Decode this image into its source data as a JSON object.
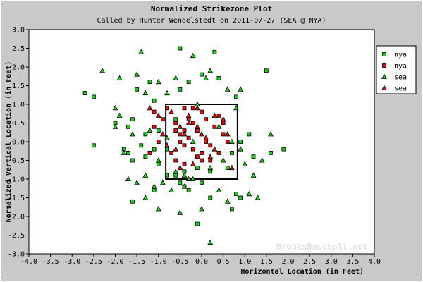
{
  "chart_data": {
    "type": "scatter",
    "title": "Normalized Strikezone Plot",
    "subtitle": "Called by Hunter Wendelstedt on 2011-07-27 (SEA @ NYA)",
    "xlabel": "Horizontal Location (in Feet)",
    "ylabel": "Normalized Vertical Location (in Feet)",
    "xlim": [
      -4.0,
      4.0
    ],
    "ylim": [
      -3.0,
      3.0
    ],
    "x_ticks": [
      "-4.0",
      "-3.5",
      "-3.0",
      "-2.5",
      "-2.0",
      "-1.5",
      "-1.0",
      "-0.5",
      "0.0",
      "0.5",
      "1.0",
      "1.5",
      "2.0",
      "2.5",
      "3.0",
      "3.5",
      "4.0"
    ],
    "y_ticks": [
      "-3.0",
      "-2.5",
      "-2.0",
      "-1.5",
      "-1.0",
      "-0.5",
      "0.0",
      "0.5",
      "1.0",
      "1.5",
      "2.0",
      "2.5",
      "3.0"
    ],
    "grid": false,
    "legend_position": "top-right",
    "watermark": "BrooksBaseball.net",
    "strike_zone": {
      "x": [
        -0.83,
        0.83
      ],
      "y": [
        -1.0,
        1.0
      ]
    },
    "series": [
      {
        "name": "nya",
        "marker": "square",
        "color": "#22cc22",
        "points": [
          [
            -2.5,
            1.2
          ],
          [
            -2.0,
            0.5
          ],
          [
            -1.7,
            0.4
          ],
          [
            -1.6,
            0.6
          ],
          [
            -1.7,
            -0.3
          ],
          [
            -1.8,
            -0.2
          ],
          [
            -1.4,
            -0.1
          ],
          [
            -1.6,
            -0.5
          ],
          [
            -1.3,
            0.2
          ],
          [
            -1.5,
            1.4
          ],
          [
            -1.1,
            1.1
          ],
          [
            -1.0,
            0.3
          ],
          [
            -1.1,
            -0.2
          ],
          [
            -1.0,
            -0.6
          ],
          [
            -0.8,
            -0.9
          ],
          [
            -0.6,
            -0.9
          ],
          [
            -0.5,
            -1.1
          ],
          [
            -0.4,
            -0.8
          ],
          [
            -0.1,
            -0.7
          ],
          [
            0.0,
            -1.1
          ],
          [
            0.2,
            -0.8
          ],
          [
            0.6,
            -0.7
          ],
          [
            0.7,
            -0.3
          ],
          [
            0.9,
            0.0
          ],
          [
            1.1,
            0.2
          ],
          [
            1.2,
            -0.4
          ],
          [
            1.6,
            -0.3
          ],
          [
            1.9,
            -0.2
          ],
          [
            0.8,
            -1.4
          ],
          [
            0.7,
            -1.8
          ],
          [
            0.9,
            -1.5
          ],
          [
            0.2,
            -1.5
          ],
          [
            -0.1,
            -2.2
          ],
          [
            -0.3,
            -1.3
          ],
          [
            -0.8,
            -0.2
          ],
          [
            -1.3,
            -0.4
          ],
          [
            -1.6,
            -1.6
          ],
          [
            -1.1,
            -1.3
          ],
          [
            -0.6,
            0.6
          ],
          [
            -0.5,
            1.4
          ],
          [
            -0.3,
            1.6
          ],
          [
            0.0,
            1.8
          ],
          [
            -0.5,
            2.5
          ],
          [
            0.3,
            2.4
          ],
          [
            -1.2,
            1.6
          ],
          [
            1.5,
            1.9
          ],
          [
            0.4,
            1.7
          ],
          [
            0.8,
            1.2
          ],
          [
            -2.7,
            1.3
          ],
          [
            -2.5,
            -0.1
          ],
          [
            -0.4,
            -1.2
          ]
        ]
      },
      {
        "name": "nya",
        "marker": "square",
        "color": "#dd1111",
        "points": [
          [
            -0.8,
            0.9
          ],
          [
            -0.6,
            0.5
          ],
          [
            -0.5,
            0.2
          ],
          [
            -0.4,
            0.9
          ],
          [
            -0.3,
            0.6
          ],
          [
            -0.2,
            0.5
          ],
          [
            -0.1,
            0.3
          ],
          [
            0.0,
            0.8
          ],
          [
            0.1,
            0.6
          ],
          [
            0.3,
            0.4
          ],
          [
            0.5,
            0.2
          ],
          [
            0.6,
            0.0
          ],
          [
            0.2,
            -0.1
          ],
          [
            0.0,
            -0.3
          ],
          [
            -0.2,
            -0.2
          ],
          [
            -0.4,
            -0.1
          ],
          [
            -0.5,
            0.0
          ],
          [
            -0.7,
            -0.3
          ],
          [
            -0.6,
            -0.5
          ],
          [
            -0.4,
            -0.6
          ],
          [
            -0.1,
            -0.4
          ],
          [
            0.2,
            -0.5
          ],
          [
            0.4,
            -0.3
          ],
          [
            0.5,
            0.5
          ],
          [
            -0.3,
            0.1
          ],
          [
            -0.6,
            0.3
          ],
          [
            -0.9,
            0.6
          ],
          [
            -1.0,
            0.0
          ],
          [
            -1.1,
            0.4
          ],
          [
            -1.2,
            -0.3
          ],
          [
            -1.1,
            0.8
          ],
          [
            0.1,
            0.0
          ],
          [
            -0.2,
            0.9
          ],
          [
            0.4,
            0.7
          ],
          [
            -0.4,
            0.3
          ],
          [
            0.0,
            -0.5
          ]
        ]
      },
      {
        "name": "sea",
        "marker": "triangle",
        "color": "#22cc22",
        "points": [
          [
            -2.3,
            1.9
          ],
          [
            -1.9,
            0.7
          ],
          [
            -2.0,
            0.9
          ],
          [
            -1.9,
            1.7
          ],
          [
            -1.5,
            1.8
          ],
          [
            -1.4,
            2.4
          ],
          [
            -1.3,
            1.3
          ],
          [
            -1.0,
            1.6
          ],
          [
            -0.8,
            1.3
          ],
          [
            -0.6,
            1.7
          ],
          [
            -0.2,
            2.3
          ],
          [
            0.1,
            1.7
          ],
          [
            0.2,
            1.9
          ],
          [
            0.6,
            1.4
          ],
          [
            0.8,
            0.9
          ],
          [
            0.7,
            0.0
          ],
          [
            0.9,
            -0.2
          ],
          [
            1.0,
            -0.6
          ],
          [
            1.2,
            -0.9
          ],
          [
            1.3,
            -1.5
          ],
          [
            1.1,
            -1.4
          ],
          [
            0.6,
            -1.6
          ],
          [
            0.4,
            -1.3
          ],
          [
            0.0,
            -1.8
          ],
          [
            -0.3,
            -1.0
          ],
          [
            -0.4,
            -1.2
          ],
          [
            -0.7,
            -1.3
          ],
          [
            -0.9,
            -1.1
          ],
          [
            -1.1,
            -1.2
          ],
          [
            -1.0,
            -1.8
          ],
          [
            -1.3,
            -1.5
          ],
          [
            -1.5,
            -1.1
          ],
          [
            -1.7,
            -1.0
          ],
          [
            -1.8,
            -0.3
          ],
          [
            -2.0,
            0.4
          ],
          [
            -1.6,
            0.2
          ],
          [
            -1.3,
            -0.9
          ],
          [
            -1.0,
            -0.5
          ],
          [
            -0.6,
            -0.8
          ],
          [
            -0.4,
            -0.9
          ],
          [
            -0.5,
            -1.9
          ],
          [
            -0.2,
            0.0
          ],
          [
            0.2,
            -0.7
          ],
          [
            0.5,
            -0.5
          ],
          [
            0.4,
            0.4
          ],
          [
            -0.1,
            1.0
          ],
          [
            -0.8,
            0.1
          ],
          [
            1.4,
            -0.5
          ],
          [
            1.6,
            0.2
          ],
          [
            0.9,
            1.4
          ],
          [
            0.2,
            -2.7
          ],
          [
            -0.2,
            -1.0
          ],
          [
            -1.2,
            0.3
          ]
        ]
      },
      {
        "name": "sea",
        "marker": "triangle",
        "color": "#dd1111",
        "points": [
          [
            -0.7,
            0.8
          ],
          [
            -0.5,
            0.4
          ],
          [
            -0.3,
            0.7
          ],
          [
            -0.1,
            0.4
          ],
          [
            0.1,
            0.1
          ],
          [
            0.3,
            -0.2
          ],
          [
            0.5,
            0.6
          ],
          [
            0.6,
            0.2
          ],
          [
            -0.2,
            -0.6
          ],
          [
            -0.5,
            -0.7
          ],
          [
            -0.8,
            -0.1
          ],
          [
            -0.9,
            0.2
          ],
          [
            -1.0,
            0.7
          ],
          [
            -1.2,
            0.9
          ],
          [
            0.0,
            0.2
          ],
          [
            0.3,
            0.7
          ],
          [
            -0.6,
            -0.2
          ],
          [
            -0.4,
            0.2
          ],
          [
            0.2,
            -0.4
          ],
          [
            0.7,
            -0.7
          ],
          [
            -0.1,
            0.9
          ],
          [
            -0.3,
            0.5
          ]
        ]
      }
    ]
  }
}
